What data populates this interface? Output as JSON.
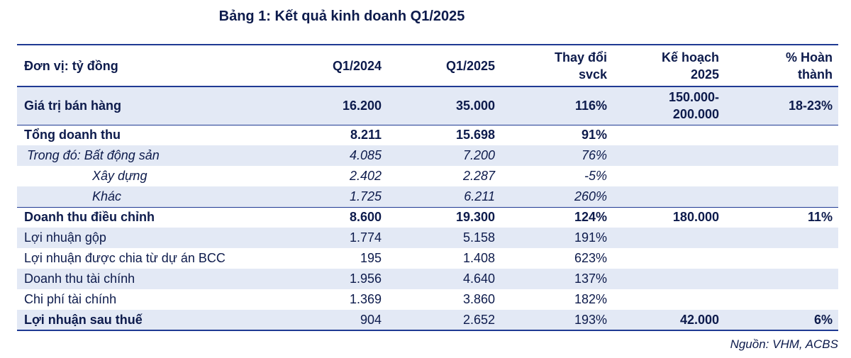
{
  "title": "Bảng 1: Kết quả kinh doanh Q1/2025",
  "table": {
    "headers": {
      "unit": "Đơn vị: tỷ đồng",
      "q1_2024": "Q1/2024",
      "q1_2025": "Q1/2025",
      "change_l1": "Thay đổi",
      "change_l2": "svck",
      "plan_l1": "Kế hoạch",
      "plan_l2": "2025",
      "pct_l1": "% Hoàn",
      "pct_l2": "thành"
    },
    "rows": [
      {
        "label": "Giá trị bán hàng",
        "q1_2024": "16.200",
        "q1_2025": "35.000",
        "change": "116%",
        "plan_l1": "150.000-",
        "plan_l2": "200.000",
        "pct": "18-23%"
      },
      {
        "label": "Tổng doanh thu",
        "q1_2024": "8.211",
        "q1_2025": "15.698",
        "change": "91%",
        "plan": "",
        "pct": ""
      },
      {
        "label": "Trong đó: Bất động sản",
        "q1_2024": "4.085",
        "q1_2025": "7.200",
        "change": "76%",
        "plan": "",
        "pct": ""
      },
      {
        "label": "Xây dựng",
        "q1_2024": "2.402",
        "q1_2025": "2.287",
        "change": "-5%",
        "plan": "",
        "pct": ""
      },
      {
        "label": "Khác",
        "q1_2024": "1.725",
        "q1_2025": "6.211",
        "change": "260%",
        "plan": "",
        "pct": ""
      },
      {
        "label": "Doanh thu điều chỉnh",
        "q1_2024": "8.600",
        "q1_2025": "19.300",
        "change": "124%",
        "plan": "180.000",
        "pct": "11%"
      },
      {
        "label": "Lợi nhuận gộp",
        "q1_2024": "1.774",
        "q1_2025": "5.158",
        "change": "191%",
        "plan": "",
        "pct": ""
      },
      {
        "label": "Lợi nhuận được chia từ dự án BCC",
        "q1_2024": "195",
        "q1_2025": "1.408",
        "change": "623%",
        "plan": "",
        "pct": ""
      },
      {
        "label": "Doanh thu tài chính",
        "q1_2024": "1.956",
        "q1_2025": "4.640",
        "change": "137%",
        "plan": "",
        "pct": ""
      },
      {
        "label": "Chi phí tài chính",
        "q1_2024": "1.369",
        "q1_2025": "3.860",
        "change": "182%",
        "plan": "",
        "pct": ""
      },
      {
        "label": "Lợi nhuận sau thuế",
        "q1_2024": "904",
        "q1_2025": "2.652",
        "change": "193%",
        "plan": "42.000",
        "pct": "6%"
      }
    ]
  },
  "source": "Nguồn: VHM, ACBS",
  "colors": {
    "text": "#0d1b4c",
    "rule": "#1f3a93",
    "shade": "#e3e9f5"
  }
}
